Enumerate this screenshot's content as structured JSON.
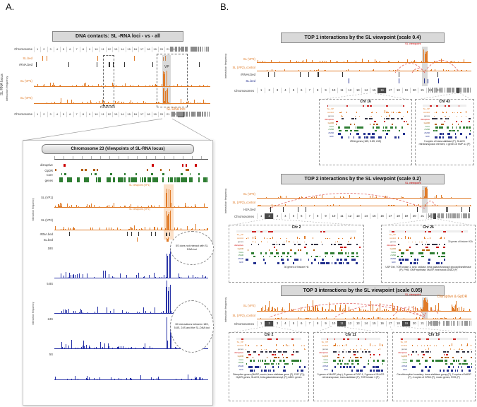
{
  "panelA": {
    "label": "A.",
    "title": "DNA contacts: SL -RNA loci - vs - all",
    "overview": {
      "chromosome_label": "Chromosome",
      "chromosome_label_bottom": "Chromosome",
      "chromosomes": [
        "1",
        "2",
        "3",
        "4",
        "5",
        "6",
        "7",
        "8",
        "9",
        "10",
        "11",
        "12",
        "13",
        "14",
        "15",
        "16",
        "17",
        "18",
        "19",
        "20",
        "21",
        "22",
        "23"
      ],
      "highlighted": [
        "23"
      ],
      "sl_bed": "SL.bed",
      "rrna_bed": "rRNA.bed",
      "sl_vp1": "SL (VP1)",
      "sl_vp2": "SL (VP2)",
      "vp": "VP",
      "y_label": "interaction frequency",
      "section_label": "SL RNA locus",
      "rrna_loci": "rRNA loci",
      "sl_rna_loci": "SL RNA loci"
    },
    "zoom": {
      "title": "Chromosome 23 (Viewpoints of SL-RNA locus)",
      "disruptive": "disruptive",
      "gpdr": "GpDR",
      "core": "Core",
      "genes": "genes",
      "sl_vp1": "SL (VP1)",
      "sl_vp2": "SL (VP2)",
      "vp1_callout": "SL viewpoint (VP1)",
      "vp2_callout": "SL viewpoint (VP2)",
      "rrna_bed": "rRNA.bed",
      "sl_bed": "SL.bed",
      "y_label": "interaction frequency",
      "y_label_blue": "interaction frequency",
      "blue_tracks": [
        "18S",
        "5.8S",
        "24S",
        "5S"
      ],
      "annotation_5s": "5S does not interact with SL DNA loci",
      "annotation_30": "30 interactions between 18S, 5.8S, 24S and the SL-DNA loci"
    }
  },
  "panelB": {
    "label": "B.",
    "chromosomes": [
      "1",
      "2",
      "3",
      "4",
      "5",
      "6",
      "7",
      "8",
      "9",
      "10",
      "11",
      "12",
      "13",
      "14",
      "15",
      "16",
      "17",
      "18",
      "19",
      "20",
      "21",
      "22",
      "23"
    ],
    "mini_tracks": [
      "SL_VP",
      "control",
      "genes",
      "disruptive",
      "GpDR",
      "Core",
      "cSSR",
      "dSSR",
      "GFF"
    ],
    "sections": [
      {
        "title": "TOP 1 interactions by the SL viewpoint (scale 0.4)",
        "y_label": "interaction frequency",
        "track1": "SL (VP2)",
        "track2": "SL (VP2)_control",
        "track3": "rRNAs.bed",
        "track4": "SL.bed",
        "viewpoint": "SL viewpoint",
        "chromosome_label": "Chromosomes",
        "highlighted": [
          "16"
        ],
        "boxes": [
          {
            "title": "Chr 16",
            "caption": "rRNA genes (18S, 5.8S, 24S)"
          },
          {
            "title": "Chr 43",
            "caption": "5 copies of trans-sialidase (P), SLACS retrotransposon element, 4 genes of KMP-11 (P)"
          }
        ]
      },
      {
        "title": "TOP 2 interactions by the SL viewpoint (scale 0.2)",
        "y_label": "interaction frequency",
        "track1": "SL (VP2)",
        "track2": "SL (VP2)_control",
        "track3": "H2A.bed",
        "viewpoint": "SL viewpoint",
        "chromosome_label": "Chromosomes",
        "highlighted": [
          "2"
        ],
        "boxes": [
          {
            "title": "Chr 2",
            "caption": "30 genes of histone H4"
          },
          {
            "title": "Chr 26",
            "note": "30 genes of histone H2A",
            "caption": "USP DeI, TOR kinase 1, ionic oxidase, beta galactofuranosyl glycosyltransferase (P), PHB, GMP synthase, MASP, heat shock DNAJ (P)"
          }
        ]
      },
      {
        "title": "TOP 3 interactions by the SL viewpoint (scale 0.05)",
        "y_label": "interaction frequency",
        "right_label": "Disruptive & GpDR",
        "track1": "SL (VP2)",
        "track2": "SL (VP2)_control",
        "viewpoint": "SL viewpoint",
        "chromosome_label": "Chromosomes",
        "highlighted": [
          "2",
          "11",
          "19"
        ],
        "boxes": [
          {
            "title": "Chr 2",
            "caption": "Disruptive genes (MASP, mucin, trans-sialidase gene (P), DGF (P)); GpDR genes; SLACS; beta galactofuranosyl (P); ABC1 genes"
          },
          {
            "title": "Chr 11",
            "caption": "3 genes of MASP (dup.), 5 genes of DGF-1, 2 genes of SLACS retrotransposon, trans-sialidase (P), TOR kinase 1 (P)"
          },
          {
            "title": "Chr 19",
            "caption": "Core/disruptive boundary: trans-sialidase group (P), 2 copies of MASP (P), 4 copies of GP63 (P), mucin genes, RHS (P)"
          }
        ]
      }
    ]
  }
}
